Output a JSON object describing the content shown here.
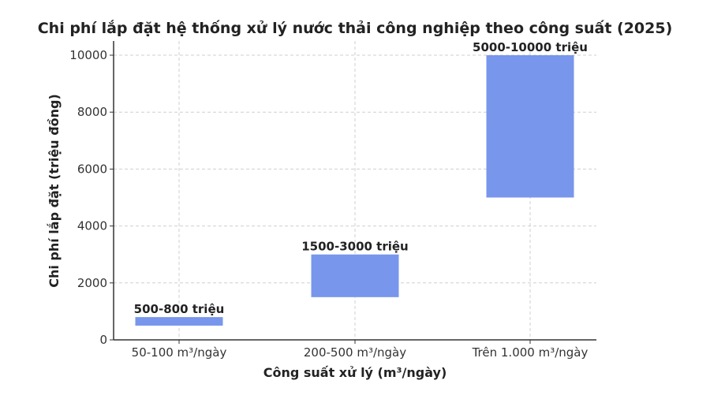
{
  "chart_data": {
    "type": "bar",
    "subtype": "floating-range",
    "title": "Chi phí lắp đặt hệ thống xử lý nước thải công nghiệp theo công suất (2025)",
    "xlabel": "Công suất xử lý (m³/ngày)",
    "ylabel": "Chi phí lắp đặt (triệu đồng)",
    "categories": [
      "50-100 m³/ngày",
      "200-500 m³/ngày",
      "Trên 1.000 m³/ngày"
    ],
    "ranges": [
      [
        500,
        800
      ],
      [
        1500,
        3000
      ],
      [
        5000,
        10000
      ]
    ],
    "data_labels": [
      "500-800 triệu",
      "1500-3000 triệu",
      "5000-10000 triệu"
    ],
    "ylim": [
      0,
      10000
    ],
    "yticks": [
      0,
      2000,
      4000,
      6000,
      8000,
      10000
    ],
    "grid": true,
    "bar_color": "#7896eb"
  }
}
